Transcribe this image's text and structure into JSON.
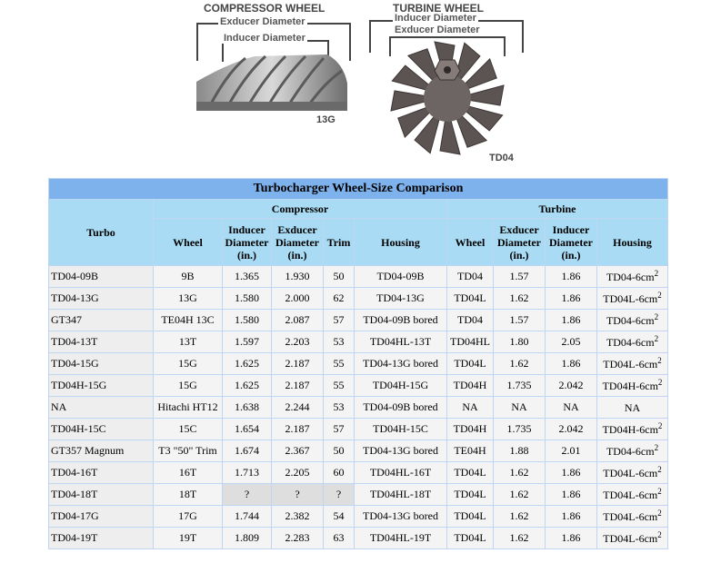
{
  "figure": {
    "compressor": {
      "title": "COMPRESSOR WHEEL",
      "exducer_label": "Exducer Diameter",
      "inducer_label": "Inducer Diameter",
      "code": "13G"
    },
    "turbine": {
      "title": "TURBINE WHEEL",
      "inducer_label": "Inducer Diameter",
      "exducer_label": "Exducer Diameter",
      "code": "TD04"
    }
  },
  "table": {
    "caption": "Turbocharger Wheel-Size Comparison",
    "groups": {
      "turbo": "Turbo",
      "compressor": "Compressor",
      "turbine": "Turbine"
    },
    "columns": {
      "c_wheel": "Wheel",
      "c_inducer": "Inducer Diameter (in.)",
      "c_exducer": "Exducer Diameter (in.)",
      "c_trim": "Trim",
      "c_housing": "Housing",
      "t_wheel": "Wheel",
      "t_exducer": "Exducer Diameter (in.)",
      "t_inducer": "Inducer Diameter (in.)",
      "t_housing": "Housing"
    },
    "rows": [
      {
        "turbo": "TD04-09B",
        "c_wheel": "9B",
        "c_ind": "1.365",
        "c_exd": "1.930",
        "trim": "50",
        "c_housing": "TD04-09B",
        "t_wheel": "TD04",
        "t_exd": "1.57",
        "t_ind": "1.86",
        "t_housing": "TD04-6cm",
        "t_sup": "2"
      },
      {
        "turbo": "TD04-13G",
        "c_wheel": "13G",
        "c_ind": "1.580",
        "c_exd": "2.000",
        "trim": "62",
        "c_housing": "TD04-13G",
        "t_wheel": "TD04L",
        "t_exd": "1.62",
        "t_ind": "1.86",
        "t_housing": "TD04L-6cm",
        "t_sup": "2"
      },
      {
        "turbo": "GT347",
        "c_wheel": "TE04H 13C",
        "c_ind": "1.580",
        "c_exd": "2.087",
        "trim": "57",
        "c_housing": "TD04-09B bored",
        "t_wheel": "TD04",
        "t_exd": "1.57",
        "t_ind": "1.86",
        "t_housing": "TD04-6cm",
        "t_sup": "2"
      },
      {
        "turbo": "TD04-13T",
        "c_wheel": "13T",
        "c_ind": "1.597",
        "c_exd": "2.203",
        "trim": "53",
        "c_housing": "TD04HL-13T",
        "t_wheel": "TD04HL",
        "t_exd": "1.80",
        "t_ind": "2.05",
        "t_housing": "TD04-6cm",
        "t_sup": "2"
      },
      {
        "turbo": "TD04-15G",
        "c_wheel": "15G",
        "c_ind": "1.625",
        "c_exd": "2.187",
        "trim": "55",
        "c_housing": "TD04-13G bored",
        "t_wheel": "TD04L",
        "t_exd": "1.62",
        "t_ind": "1.86",
        "t_housing": "TD04L-6cm",
        "t_sup": "2"
      },
      {
        "turbo": "TD04H-15G",
        "c_wheel": "15G",
        "c_ind": "1.625",
        "c_exd": "2.187",
        "trim": "55",
        "c_housing": "TD04H-15G",
        "t_wheel": "TD04H",
        "t_exd": "1.735",
        "t_ind": "2.042",
        "t_housing": "TD04H-6cm",
        "t_sup": "2"
      },
      {
        "turbo": "NA",
        "c_wheel": "Hitachi HT12",
        "c_ind": "1.638",
        "c_exd": "2.244",
        "trim": "53",
        "c_housing": "TD04-09B bored",
        "t_wheel": "NA",
        "t_exd": "NA",
        "t_ind": "NA",
        "t_housing": "NA",
        "t_sup": ""
      },
      {
        "turbo": "TD04H-15C",
        "c_wheel": "15C",
        "c_ind": "1.654",
        "c_exd": "2.187",
        "trim": "57",
        "c_housing": "TD04H-15C",
        "t_wheel": "TD04H",
        "t_exd": "1.735",
        "t_ind": "2.042",
        "t_housing": "TD04H-6cm",
        "t_sup": "2"
      },
      {
        "turbo": "GT357 Magnum",
        "c_wheel": "T3 \"50\" Trim",
        "c_ind": "1.674",
        "c_exd": "2.367",
        "trim": "50",
        "c_housing": "TD04-13G bored",
        "t_wheel": "TE04H",
        "t_exd": "1.88",
        "t_ind": "2.01",
        "t_housing": "TD04-6cm",
        "t_sup": "2"
      },
      {
        "turbo": "TD04-16T",
        "c_wheel": "16T",
        "c_ind": "1.713",
        "c_exd": "2.205",
        "trim": "60",
        "c_housing": "TD04HL-16T",
        "t_wheel": "TD04L",
        "t_exd": "1.62",
        "t_ind": "1.86",
        "t_housing": "TD04L-6cm",
        "t_sup": "2"
      },
      {
        "turbo": "TD04-18T",
        "c_wheel": "18T",
        "c_ind": "?",
        "c_exd": "?",
        "trim": "?",
        "c_housing": "TD04HL-18T",
        "t_wheel": "TD04L",
        "t_exd": "1.62",
        "t_ind": "1.86",
        "t_housing": "TD04L-6cm",
        "t_sup": "2"
      },
      {
        "turbo": "TD04-17G",
        "c_wheel": "17G",
        "c_ind": "1.744",
        "c_exd": "2.382",
        "trim": "54",
        "c_housing": "TD04-13G bored",
        "t_wheel": "TD04L",
        "t_exd": "1.62",
        "t_ind": "1.86",
        "t_housing": "TD04L-6cm",
        "t_sup": "2"
      },
      {
        "turbo": "TD04-19T",
        "c_wheel": "19T",
        "c_ind": "1.809",
        "c_exd": "2.283",
        "trim": "63",
        "c_housing": "TD04HL-19T",
        "t_wheel": "TD04L",
        "t_exd": "1.62",
        "t_ind": "1.86",
        "t_housing": "TD04L-6cm",
        "t_sup": "2"
      }
    ]
  }
}
